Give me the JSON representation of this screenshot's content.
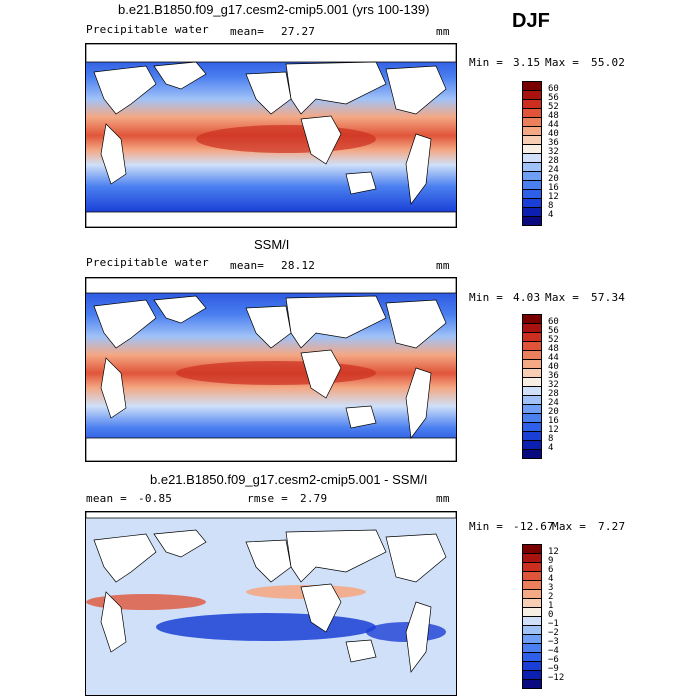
{
  "season": "DJF",
  "panels": [
    {
      "title": "b.e21.B1850.f09_g17.cesm2-cmip5.001 (yrs 100-139)",
      "left_label": "Precipitable water",
      "stat_label": "mean=",
      "stat_value": "27.27",
      "units": "mm",
      "minmax": {
        "min_label": "Min =",
        "min": "3.15",
        "max_label": "Max =",
        "max": "55.02"
      }
    },
    {
      "title": "SSM/I",
      "left_label": "Precipitable water",
      "stat_label": "mean=",
      "stat_value": "28.12",
      "units": "mm",
      "minmax": {
        "min_label": "Min =",
        "min": "4.03",
        "max_label": "Max =",
        "max": "57.34"
      }
    },
    {
      "title": "b.e21.B1850.f09_g17.cesm2-cmip5.001 - SSM/I",
      "mean_label": "mean =",
      "mean_value": "-0.85",
      "rmse_label": "rmse =",
      "rmse_value": "2.79",
      "units": "mm",
      "minmax": {
        "min_label": "Min =",
        "min": "-12.67",
        "max_label": "Max =",
        "max": "7.27"
      }
    }
  ],
  "chart_data": [
    {
      "type": "heatmap",
      "title": "b.e21.B1850.f09_g17.cesm2-cmip5.001 (yrs 100-139)",
      "variable": "Precipitable water",
      "units": "mm",
      "mean": 27.27,
      "min": 3.15,
      "max": 55.02,
      "colorbar_levels": [
        4,
        8,
        12,
        16,
        20,
        24,
        28,
        32,
        36,
        40,
        44,
        48,
        52,
        56,
        60
      ],
      "colorbar_colors": [
        "#0a0a80",
        "#0b1fb0",
        "#1a3fd6",
        "#2d5fe8",
        "#4a7ff0",
        "#6f9ff5",
        "#a0c2f7",
        "#cfe0f8",
        "#f7eee4",
        "#f7cdb4",
        "#f4a884",
        "#ec7f5c",
        "#e0553a",
        "#cc2f20",
        "#a8120f",
        "#7a0000"
      ]
    },
    {
      "type": "heatmap",
      "title": "SSM/I",
      "variable": "Precipitable water",
      "units": "mm",
      "mean": 28.12,
      "min": 4.03,
      "max": 57.34,
      "colorbar_levels": [
        4,
        8,
        12,
        16,
        20,
        24,
        28,
        32,
        36,
        40,
        44,
        48,
        52,
        56,
        60
      ],
      "colorbar_colors": [
        "#0a0a80",
        "#0b1fb0",
        "#1a3fd6",
        "#2d5fe8",
        "#4a7ff0",
        "#6f9ff5",
        "#a0c2f7",
        "#cfe0f8",
        "#f7eee4",
        "#f7cdb4",
        "#f4a884",
        "#ec7f5c",
        "#e0553a",
        "#cc2f20",
        "#a8120f",
        "#7a0000"
      ]
    },
    {
      "type": "heatmap",
      "title": "b.e21.B1850.f09_g17.cesm2-cmip5.001 - SSM/I",
      "units": "mm",
      "mean": -0.85,
      "rmse": 2.79,
      "min": -12.67,
      "max": 7.27,
      "colorbar_levels": [
        -12,
        -9,
        -6,
        -4,
        -3,
        -2,
        -1,
        0,
        1,
        2,
        3,
        4,
        6,
        9,
        12
      ],
      "colorbar_colors": [
        "#0a0a80",
        "#0b1fb0",
        "#1a3fd6",
        "#2d5fe8",
        "#4a7ff0",
        "#6f9ff5",
        "#a0c2f7",
        "#cfe0f8",
        "#f7eee4",
        "#f7cdb4",
        "#f4a884",
        "#ec7f5c",
        "#e0553a",
        "#cc2f20",
        "#a8120f",
        "#7a0000"
      ]
    }
  ]
}
